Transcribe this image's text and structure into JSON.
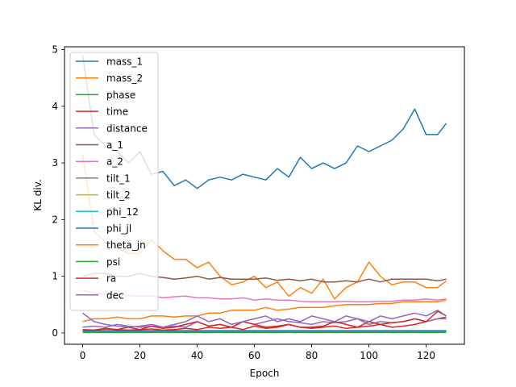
{
  "chart_data": {
    "type": "line",
    "title": "",
    "xlabel": "Epoch",
    "ylabel": "KL div.",
    "xlim": [
      -6.35,
      133.35
    ],
    "ylim": [
      -0.2,
      5.05
    ],
    "xticks": [
      0,
      20,
      40,
      60,
      80,
      100,
      120
    ],
    "yticks": [
      0,
      1,
      2,
      3,
      4,
      5
    ],
    "grid": false,
    "legend_position": "upper-left",
    "x": [
      0,
      4,
      8,
      12,
      16,
      20,
      24,
      28,
      32,
      36,
      40,
      44,
      48,
      52,
      56,
      60,
      64,
      68,
      72,
      76,
      80,
      84,
      88,
      92,
      96,
      100,
      104,
      108,
      112,
      116,
      120,
      124,
      127
    ],
    "series": [
      {
        "name": "mass_1",
        "color": "#1f77b4",
        "values": [
          4.9,
          3.5,
          3.3,
          3.2,
          3.0,
          3.2,
          2.8,
          2.85,
          2.6,
          2.7,
          2.55,
          2.7,
          2.75,
          2.7,
          2.8,
          2.75,
          2.7,
          2.9,
          2.75,
          3.1,
          2.9,
          3.0,
          2.9,
          3.0,
          3.3,
          3.2,
          3.3,
          3.4,
          3.6,
          3.95,
          3.5,
          3.5,
          3.7
        ]
      },
      {
        "name": "mass_2",
        "color": "#ff7f0e",
        "values": [
          3.15,
          1.8,
          1.6,
          1.5,
          1.4,
          1.4,
          1.65,
          1.45,
          1.3,
          1.3,
          1.15,
          1.25,
          1.0,
          0.85,
          0.9,
          1.0,
          0.8,
          0.9,
          0.65,
          0.8,
          0.7,
          0.95,
          0.6,
          0.8,
          0.9,
          1.25,
          1.0,
          0.85,
          0.9,
          0.9,
          0.8,
          0.8,
          0.92
        ]
      },
      {
        "name": "phase",
        "color": "#2ca02c",
        "values": [
          0.02,
          0.02,
          0.02,
          0.02,
          0.02,
          0.02,
          0.02,
          0.02,
          0.02,
          0.02,
          0.02,
          0.02,
          0.02,
          0.02,
          0.02,
          0.02,
          0.02,
          0.02,
          0.02,
          0.02,
          0.02,
          0.02,
          0.02,
          0.02,
          0.02,
          0.02,
          0.02,
          0.02,
          0.02,
          0.02,
          0.02,
          0.02,
          0.02
        ]
      },
      {
        "name": "time",
        "color": "#d62728",
        "values": [
          0.05,
          0.05,
          0.07,
          0.06,
          0.05,
          0.06,
          0.07,
          0.05,
          0.06,
          0.08,
          0.06,
          0.1,
          0.08,
          0.1,
          0.06,
          0.12,
          0.08,
          0.1,
          0.15,
          0.1,
          0.08,
          0.1,
          0.12,
          0.08,
          0.1,
          0.12,
          0.15,
          0.1,
          0.12,
          0.15,
          0.2,
          0.25,
          0.28
        ]
      },
      {
        "name": "distance",
        "color": "#9467bd",
        "values": [
          0.1,
          0.12,
          0.1,
          0.15,
          0.12,
          0.1,
          0.12,
          0.1,
          0.12,
          0.1,
          0.2,
          0.12,
          0.15,
          0.1,
          0.2,
          0.15,
          0.2,
          0.25,
          0.2,
          0.18,
          0.15,
          0.2,
          0.18,
          0.2,
          0.25,
          0.15,
          0.2,
          0.18,
          0.2,
          0.25,
          0.2,
          0.25,
          0.25
        ]
      },
      {
        "name": "a_1",
        "color": "#8c564b",
        "values": [
          1.0,
          1.05,
          1.05,
          1.0,
          1.0,
          1.05,
          1.0,
          0.98,
          0.95,
          0.97,
          1.0,
          0.95,
          0.98,
          0.95,
          0.95,
          0.95,
          0.97,
          0.93,
          0.95,
          0.92,
          0.95,
          0.9,
          0.9,
          0.92,
          0.9,
          0.95,
          0.9,
          0.95,
          0.95,
          0.95,
          0.95,
          0.92,
          0.95
        ]
      },
      {
        "name": "a_2",
        "color": "#e377c2",
        "values": [
          0.75,
          0.7,
          0.68,
          0.68,
          0.66,
          0.65,
          0.66,
          0.62,
          0.64,
          0.65,
          0.62,
          0.62,
          0.6,
          0.6,
          0.62,
          0.58,
          0.6,
          0.58,
          0.58,
          0.56,
          0.55,
          0.55,
          0.55,
          0.56,
          0.55,
          0.55,
          0.56,
          0.56,
          0.58,
          0.58,
          0.6,
          0.58,
          0.6
        ]
      },
      {
        "name": "tilt_1",
        "color": "#7f7f7f",
        "values": [
          0.03,
          0.03,
          0.03,
          0.03,
          0.03,
          0.03,
          0.03,
          0.03,
          0.03,
          0.03,
          0.03,
          0.03,
          0.03,
          0.03,
          0.03,
          0.03,
          0.03,
          0.03,
          0.03,
          0.03,
          0.03,
          0.03,
          0.03,
          0.03,
          0.03,
          0.03,
          0.03,
          0.03,
          0.03,
          0.03,
          0.03,
          0.03,
          0.03
        ]
      },
      {
        "name": "tilt_2",
        "color": "#bcbd22",
        "values": [
          0.02,
          0.02,
          0.02,
          0.02,
          0.02,
          0.02,
          0.02,
          0.02,
          0.02,
          0.02,
          0.02,
          0.02,
          0.02,
          0.02,
          0.02,
          0.02,
          0.02,
          0.02,
          0.02,
          0.02,
          0.02,
          0.02,
          0.02,
          0.02,
          0.02,
          0.02,
          0.02,
          0.02,
          0.02,
          0.02,
          0.02,
          0.02,
          0.02
        ]
      },
      {
        "name": "phi_12",
        "color": "#17becf",
        "values": [
          0.02,
          0.02,
          0.02,
          0.02,
          0.02,
          0.02,
          0.02,
          0.02,
          0.02,
          0.02,
          0.02,
          0.02,
          0.02,
          0.02,
          0.02,
          0.02,
          0.02,
          0.02,
          0.02,
          0.02,
          0.02,
          0.02,
          0.02,
          0.02,
          0.02,
          0.02,
          0.02,
          0.02,
          0.02,
          0.02,
          0.02,
          0.02,
          0.02
        ]
      },
      {
        "name": "phi_jl",
        "color": "#1f77b4",
        "values": [
          0.04,
          0.04,
          0.04,
          0.04,
          0.04,
          0.04,
          0.04,
          0.04,
          0.04,
          0.04,
          0.04,
          0.04,
          0.04,
          0.04,
          0.04,
          0.04,
          0.04,
          0.04,
          0.04,
          0.04,
          0.04,
          0.04,
          0.04,
          0.04,
          0.04,
          0.04,
          0.04,
          0.04,
          0.04,
          0.04,
          0.04,
          0.04,
          0.04
        ]
      },
      {
        "name": "theta_jn",
        "color": "#ff7f0e",
        "values": [
          0.2,
          0.25,
          0.25,
          0.28,
          0.25,
          0.25,
          0.3,
          0.3,
          0.28,
          0.3,
          0.3,
          0.35,
          0.35,
          0.4,
          0.4,
          0.4,
          0.45,
          0.4,
          0.42,
          0.45,
          0.45,
          0.45,
          0.48,
          0.5,
          0.5,
          0.5,
          0.52,
          0.52,
          0.55,
          0.55,
          0.55,
          0.55,
          0.58
        ]
      },
      {
        "name": "psi",
        "color": "#2ca02c",
        "values": [
          0.01,
          0.01,
          0.01,
          0.01,
          0.01,
          0.01,
          0.01,
          0.01,
          0.01,
          0.01,
          0.01,
          0.01,
          0.01,
          0.01,
          0.01,
          0.01,
          0.01,
          0.01,
          0.01,
          0.01,
          0.01,
          0.01,
          0.01,
          0.01,
          0.01,
          0.01,
          0.01,
          0.01,
          0.01,
          0.01,
          0.01,
          0.01,
          0.01
        ]
      },
      {
        "name": "ra",
        "color": "#d62728",
        "values": [
          0.06,
          0.05,
          0.08,
          0.06,
          0.1,
          0.06,
          0.12,
          0.08,
          0.1,
          0.15,
          0.2,
          0.12,
          0.15,
          0.1,
          0.2,
          0.15,
          0.1,
          0.12,
          0.15,
          0.1,
          0.1,
          0.12,
          0.2,
          0.15,
          0.1,
          0.2,
          0.15,
          0.18,
          0.2,
          0.25,
          0.2,
          0.38,
          0.3
        ]
      },
      {
        "name": "dec",
        "color": "#9467bd",
        "values": [
          0.35,
          0.2,
          0.15,
          0.12,
          0.1,
          0.12,
          0.15,
          0.1,
          0.15,
          0.2,
          0.3,
          0.2,
          0.25,
          0.15,
          0.2,
          0.25,
          0.3,
          0.2,
          0.25,
          0.2,
          0.3,
          0.25,
          0.2,
          0.3,
          0.25,
          0.2,
          0.3,
          0.25,
          0.3,
          0.35,
          0.3,
          0.4,
          0.3
        ]
      }
    ]
  }
}
